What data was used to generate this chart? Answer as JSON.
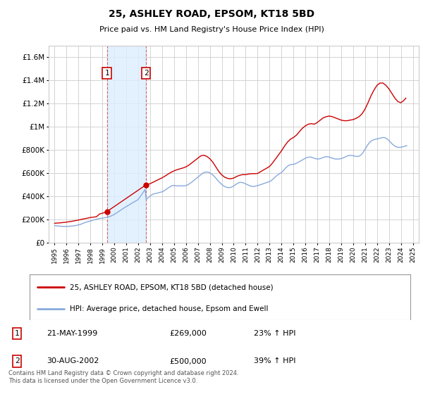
{
  "title": "25, ASHLEY ROAD, EPSOM, KT18 5BD",
  "subtitle": "Price paid vs. HM Land Registry's House Price Index (HPI)",
  "legend_line1": "25, ASHLEY ROAD, EPSOM, KT18 5BD (detached house)",
  "legend_line2": "HPI: Average price, detached house, Epsom and Ewell",
  "footer": "Contains HM Land Registry data © Crown copyright and database right 2024.\nThis data is licensed under the Open Government Licence v3.0.",
  "sale1_date": "21-MAY-1999",
  "sale1_price": "£269,000",
  "sale1_hpi": "23% ↑ HPI",
  "sale2_date": "30-AUG-2002",
  "sale2_price": "£500,000",
  "sale2_hpi": "39% ↑ HPI",
  "sale1_x": 1999.38,
  "sale1_y": 269000,
  "sale2_x": 2002.66,
  "sale2_y": 500000,
  "price_line_color": "#cc0000",
  "hpi_line_color": "#88aadd",
  "annotation_box_color": "#cc0000",
  "shaded_region_color": "#ddeeff",
  "grid_color": "#cccccc",
  "background_color": "#ffffff",
  "plot_bg_color": "#ffffff",
  "ylim": [
    0,
    1700000
  ],
  "yticks": [
    0,
    200000,
    400000,
    600000,
    800000,
    1000000,
    1200000,
    1400000,
    1600000
  ],
  "ytick_labels": [
    "£0",
    "£200K",
    "£400K",
    "£600K",
    "£800K",
    "£1M",
    "£1.2M",
    "£1.4M",
    "£1.6M"
  ],
  "xlim": [
    1994.5,
    2025.5
  ],
  "xticks": [
    1995,
    1996,
    1997,
    1998,
    1999,
    2000,
    2001,
    2002,
    2003,
    2004,
    2005,
    2006,
    2007,
    2008,
    2009,
    2010,
    2011,
    2012,
    2013,
    2014,
    2015,
    2016,
    2017,
    2018,
    2019,
    2020,
    2021,
    2022,
    2023,
    2024,
    2025
  ],
  "hpi_x": [
    1995.0,
    1995.083,
    1995.167,
    1995.25,
    1995.333,
    1995.417,
    1995.5,
    1995.583,
    1995.667,
    1995.75,
    1995.833,
    1995.917,
    1996.0,
    1996.083,
    1996.167,
    1996.25,
    1996.333,
    1996.417,
    1996.5,
    1996.583,
    1996.667,
    1996.75,
    1996.833,
    1996.917,
    1997.0,
    1997.083,
    1997.167,
    1997.25,
    1997.333,
    1997.417,
    1997.5,
    1997.583,
    1997.667,
    1997.75,
    1997.833,
    1997.917,
    1998.0,
    1998.083,
    1998.167,
    1998.25,
    1998.333,
    1998.417,
    1998.5,
    1998.583,
    1998.667,
    1998.75,
    1998.833,
    1998.917,
    1999.0,
    1999.083,
    1999.167,
    1999.25,
    1999.333,
    1999.417,
    1999.5,
    1999.583,
    1999.667,
    1999.75,
    1999.833,
    1999.917,
    2000.0,
    2000.083,
    2000.167,
    2000.25,
    2000.333,
    2000.417,
    2000.5,
    2000.583,
    2000.667,
    2000.75,
    2000.833,
    2000.917,
    2001.0,
    2001.083,
    2001.167,
    2001.25,
    2001.333,
    2001.417,
    2001.5,
    2001.583,
    2001.667,
    2001.75,
    2001.833,
    2001.917,
    2002.0,
    2002.083,
    2002.167,
    2002.25,
    2002.333,
    2002.417,
    2002.5,
    2002.583,
    2002.667,
    2002.75,
    2002.833,
    2002.917,
    2003.0,
    2003.083,
    2003.167,
    2003.25,
    2003.333,
    2003.417,
    2003.5,
    2003.583,
    2003.667,
    2003.75,
    2003.833,
    2003.917,
    2004.0,
    2004.083,
    2004.167,
    2004.25,
    2004.333,
    2004.417,
    2004.5,
    2004.583,
    2004.667,
    2004.75,
    2004.833,
    2004.917,
    2005.0,
    2005.083,
    2005.167,
    2005.25,
    2005.333,
    2005.417,
    2005.5,
    2005.583,
    2005.667,
    2005.75,
    2005.833,
    2005.917,
    2006.0,
    2006.083,
    2006.167,
    2006.25,
    2006.333,
    2006.417,
    2006.5,
    2006.583,
    2006.667,
    2006.75,
    2006.833,
    2006.917,
    2007.0,
    2007.083,
    2007.167,
    2007.25,
    2007.333,
    2007.417,
    2007.5,
    2007.583,
    2007.667,
    2007.75,
    2007.833,
    2007.917,
    2008.0,
    2008.083,
    2008.167,
    2008.25,
    2008.333,
    2008.417,
    2008.5,
    2008.583,
    2008.667,
    2008.75,
    2008.833,
    2008.917,
    2009.0,
    2009.083,
    2009.167,
    2009.25,
    2009.333,
    2009.417,
    2009.5,
    2009.583,
    2009.667,
    2009.75,
    2009.833,
    2009.917,
    2010.0,
    2010.083,
    2010.167,
    2010.25,
    2010.333,
    2010.417,
    2010.5,
    2010.583,
    2010.667,
    2010.75,
    2010.833,
    2010.917,
    2011.0,
    2011.083,
    2011.167,
    2011.25,
    2011.333,
    2011.417,
    2011.5,
    2011.583,
    2011.667,
    2011.75,
    2011.833,
    2011.917,
    2012.0,
    2012.083,
    2012.167,
    2012.25,
    2012.333,
    2012.417,
    2012.5,
    2012.583,
    2012.667,
    2012.75,
    2012.833,
    2012.917,
    2013.0,
    2013.083,
    2013.167,
    2013.25,
    2013.333,
    2013.417,
    2013.5,
    2013.583,
    2013.667,
    2013.75,
    2013.833,
    2013.917,
    2014.0,
    2014.083,
    2014.167,
    2014.25,
    2014.333,
    2014.417,
    2014.5,
    2014.583,
    2014.667,
    2014.75,
    2014.833,
    2014.917,
    2015.0,
    2015.083,
    2015.167,
    2015.25,
    2015.333,
    2015.417,
    2015.5,
    2015.583,
    2015.667,
    2015.75,
    2015.833,
    2015.917,
    2016.0,
    2016.083,
    2016.167,
    2016.25,
    2016.333,
    2016.417,
    2016.5,
    2016.583,
    2016.667,
    2016.75,
    2016.833,
    2016.917,
    2017.0,
    2017.083,
    2017.167,
    2017.25,
    2017.333,
    2017.417,
    2017.5,
    2017.583,
    2017.667,
    2017.75,
    2017.833,
    2017.917,
    2018.0,
    2018.083,
    2018.167,
    2018.25,
    2018.333,
    2018.417,
    2018.5,
    2018.583,
    2018.667,
    2018.75,
    2018.833,
    2018.917,
    2019.0,
    2019.083,
    2019.167,
    2019.25,
    2019.333,
    2019.417,
    2019.5,
    2019.583,
    2019.667,
    2019.75,
    2019.833,
    2019.917,
    2020.0,
    2020.083,
    2020.167,
    2020.25,
    2020.333,
    2020.417,
    2020.5,
    2020.583,
    2020.667,
    2020.75,
    2020.833,
    2020.917,
    2021.0,
    2021.083,
    2021.167,
    2021.25,
    2021.333,
    2021.417,
    2021.5,
    2021.583,
    2021.667,
    2021.75,
    2021.833,
    2021.917,
    2022.0,
    2022.083,
    2022.167,
    2022.25,
    2022.333,
    2022.417,
    2022.5,
    2022.583,
    2022.667,
    2022.75,
    2022.833,
    2022.917,
    2023.0,
    2023.083,
    2023.167,
    2023.25,
    2023.333,
    2023.417,
    2023.5,
    2023.583,
    2023.667,
    2023.75,
    2023.833,
    2023.917,
    2024.0,
    2024.083,
    2024.167,
    2024.25,
    2024.333,
    2024.417,
    2024.5
  ],
  "hpi_y": [
    148000,
    147000,
    146000,
    145000,
    144000,
    143000,
    143000,
    142000,
    141000,
    141000,
    141000,
    141000,
    141000,
    141000,
    141000,
    142000,
    143000,
    144000,
    145000,
    146000,
    147000,
    148000,
    150000,
    152000,
    154000,
    156000,
    158000,
    162000,
    166000,
    169000,
    172000,
    175000,
    178000,
    181000,
    183000,
    185000,
    187000,
    190000,
    193000,
    196000,
    199000,
    201000,
    203000,
    205000,
    207000,
    209000,
    210000,
    211000,
    212000,
    213000,
    215000,
    217000,
    219000,
    221000,
    223000,
    225000,
    228000,
    232000,
    236000,
    240000,
    245000,
    250000,
    255000,
    261000,
    267000,
    273000,
    278000,
    284000,
    290000,
    296000,
    301000,
    307000,
    312000,
    317000,
    322000,
    327000,
    333000,
    338000,
    343000,
    348000,
    353000,
    358000,
    363000,
    368000,
    373000,
    385000,
    397000,
    410000,
    422000,
    435000,
    447000,
    460000,
    372000,
    380000,
    388000,
    396000,
    404000,
    410000,
    415000,
    419000,
    422000,
    424000,
    426000,
    428000,
    430000,
    433000,
    435000,
    437000,
    439000,
    443000,
    448000,
    454000,
    460000,
    466000,
    472000,
    478000,
    483000,
    488000,
    492000,
    494000,
    494000,
    493000,
    492000,
    491000,
    491000,
    491000,
    491000,
    491000,
    491000,
    491000,
    491000,
    492000,
    494000,
    497000,
    501000,
    506000,
    512000,
    518000,
    524000,
    531000,
    538000,
    545000,
    552000,
    559000,
    566000,
    573000,
    580000,
    587000,
    594000,
    600000,
    605000,
    608000,
    610000,
    610000,
    609000,
    607000,
    603000,
    598000,
    592000,
    585000,
    577000,
    568000,
    558000,
    548000,
    538000,
    528000,
    519000,
    511000,
    503000,
    496000,
    490000,
    485000,
    481000,
    478000,
    476000,
    475000,
    476000,
    478000,
    481000,
    485000,
    490000,
    496000,
    502000,
    508000,
    513000,
    517000,
    520000,
    521000,
    520000,
    518000,
    515000,
    512000,
    508000,
    504000,
    500000,
    496000,
    492000,
    489000,
    487000,
    486000,
    486000,
    487000,
    489000,
    491000,
    493000,
    496000,
    498000,
    501000,
    504000,
    507000,
    510000,
    513000,
    516000,
    519000,
    522000,
    525000,
    528000,
    532000,
    538000,
    545000,
    553000,
    561000,
    569000,
    577000,
    584000,
    590000,
    595000,
    600000,
    606000,
    614000,
    623000,
    633000,
    643000,
    652000,
    660000,
    666000,
    670000,
    673000,
    675000,
    676000,
    677000,
    679000,
    682000,
    686000,
    690000,
    695000,
    700000,
    705000,
    710000,
    715000,
    720000,
    725000,
    729000,
    733000,
    736000,
    738000,
    739000,
    739000,
    738000,
    735000,
    732000,
    729000,
    726000,
    724000,
    723000,
    723000,
    724000,
    726000,
    729000,
    733000,
    736000,
    739000,
    741000,
    742000,
    742000,
    741000,
    739000,
    736000,
    733000,
    730000,
    727000,
    725000,
    723000,
    722000,
    722000,
    722000,
    723000,
    724000,
    726000,
    729000,
    732000,
    736000,
    740000,
    744000,
    748000,
    751000,
    753000,
    754000,
    754000,
    753000,
    751000,
    749000,
    747000,
    745000,
    744000,
    745000,
    747000,
    752000,
    759000,
    768000,
    779000,
    792000,
    806000,
    821000,
    835000,
    848000,
    859000,
    869000,
    876000,
    882000,
    886000,
    889000,
    892000,
    894000,
    896000,
    898000,
    900000,
    902000,
    904000,
    906000,
    908000,
    908000,
    906000,
    902000,
    897000,
    890000,
    882000,
    873000,
    864000,
    855000,
    847000,
    840000,
    834000,
    829000,
    826000,
    824000,
    823000,
    823000,
    824000,
    826000,
    828000,
    830000,
    833000,
    836000,
    838000
  ],
  "price_x": [
    1995.0,
    1995.25,
    1995.5,
    1995.75,
    1996.0,
    1996.25,
    1996.5,
    1996.75,
    1997.0,
    1997.25,
    1997.5,
    1997.75,
    1998.0,
    1998.25,
    1998.5,
    1998.75,
    1999.0,
    1999.25,
    1999.38,
    2002.66,
    2003.0,
    2003.25,
    2003.5,
    2003.75,
    2004.0,
    2004.25,
    2004.5,
    2004.75,
    2005.0,
    2005.25,
    2005.5,
    2005.75,
    2006.0,
    2006.25,
    2006.5,
    2006.75,
    2007.0,
    2007.25,
    2007.5,
    2007.75,
    2008.0,
    2008.25,
    2008.5,
    2008.75,
    2009.0,
    2009.25,
    2009.5,
    2009.75,
    2010.0,
    2010.25,
    2010.5,
    2010.75,
    2011.0,
    2011.25,
    2011.5,
    2011.75,
    2012.0,
    2012.25,
    2012.5,
    2012.75,
    2013.0,
    2013.25,
    2013.5,
    2013.75,
    2014.0,
    2014.25,
    2014.5,
    2014.75,
    2015.0,
    2015.25,
    2015.5,
    2015.75,
    2016.0,
    2016.25,
    2016.5,
    2016.75,
    2017.0,
    2017.25,
    2017.5,
    2017.75,
    2018.0,
    2018.25,
    2018.5,
    2018.75,
    2019.0,
    2019.25,
    2019.5,
    2019.75,
    2020.0,
    2020.25,
    2020.5,
    2020.75,
    2021.0,
    2021.25,
    2021.5,
    2021.75,
    2022.0,
    2022.25,
    2022.5,
    2022.75,
    2023.0,
    2023.25,
    2023.5,
    2023.75,
    2024.0,
    2024.25,
    2024.42
  ],
  "price_y": [
    168000,
    170000,
    172000,
    175000,
    178000,
    182000,
    186000,
    191000,
    196000,
    202000,
    207000,
    212000,
    218000,
    221000,
    224000,
    247000,
    255000,
    262000,
    269000,
    500000,
    510000,
    522000,
    535000,
    548000,
    560000,
    575000,
    592000,
    608000,
    620000,
    630000,
    638000,
    645000,
    655000,
    670000,
    690000,
    710000,
    730000,
    750000,
    755000,
    745000,
    725000,
    695000,
    655000,
    615000,
    585000,
    565000,
    555000,
    552000,
    558000,
    572000,
    582000,
    588000,
    588000,
    593000,
    596000,
    596000,
    598000,
    613000,
    628000,
    643000,
    658000,
    688000,
    723000,
    758000,
    793000,
    833000,
    868000,
    893000,
    908000,
    928000,
    958000,
    988000,
    1008000,
    1023000,
    1028000,
    1023000,
    1038000,
    1058000,
    1078000,
    1088000,
    1093000,
    1088000,
    1078000,
    1068000,
    1058000,
    1053000,
    1053000,
    1058000,
    1063000,
    1073000,
    1088000,
    1113000,
    1153000,
    1208000,
    1268000,
    1318000,
    1358000,
    1378000,
    1378000,
    1358000,
    1328000,
    1288000,
    1248000,
    1218000,
    1208000,
    1228000,
    1248000
  ]
}
